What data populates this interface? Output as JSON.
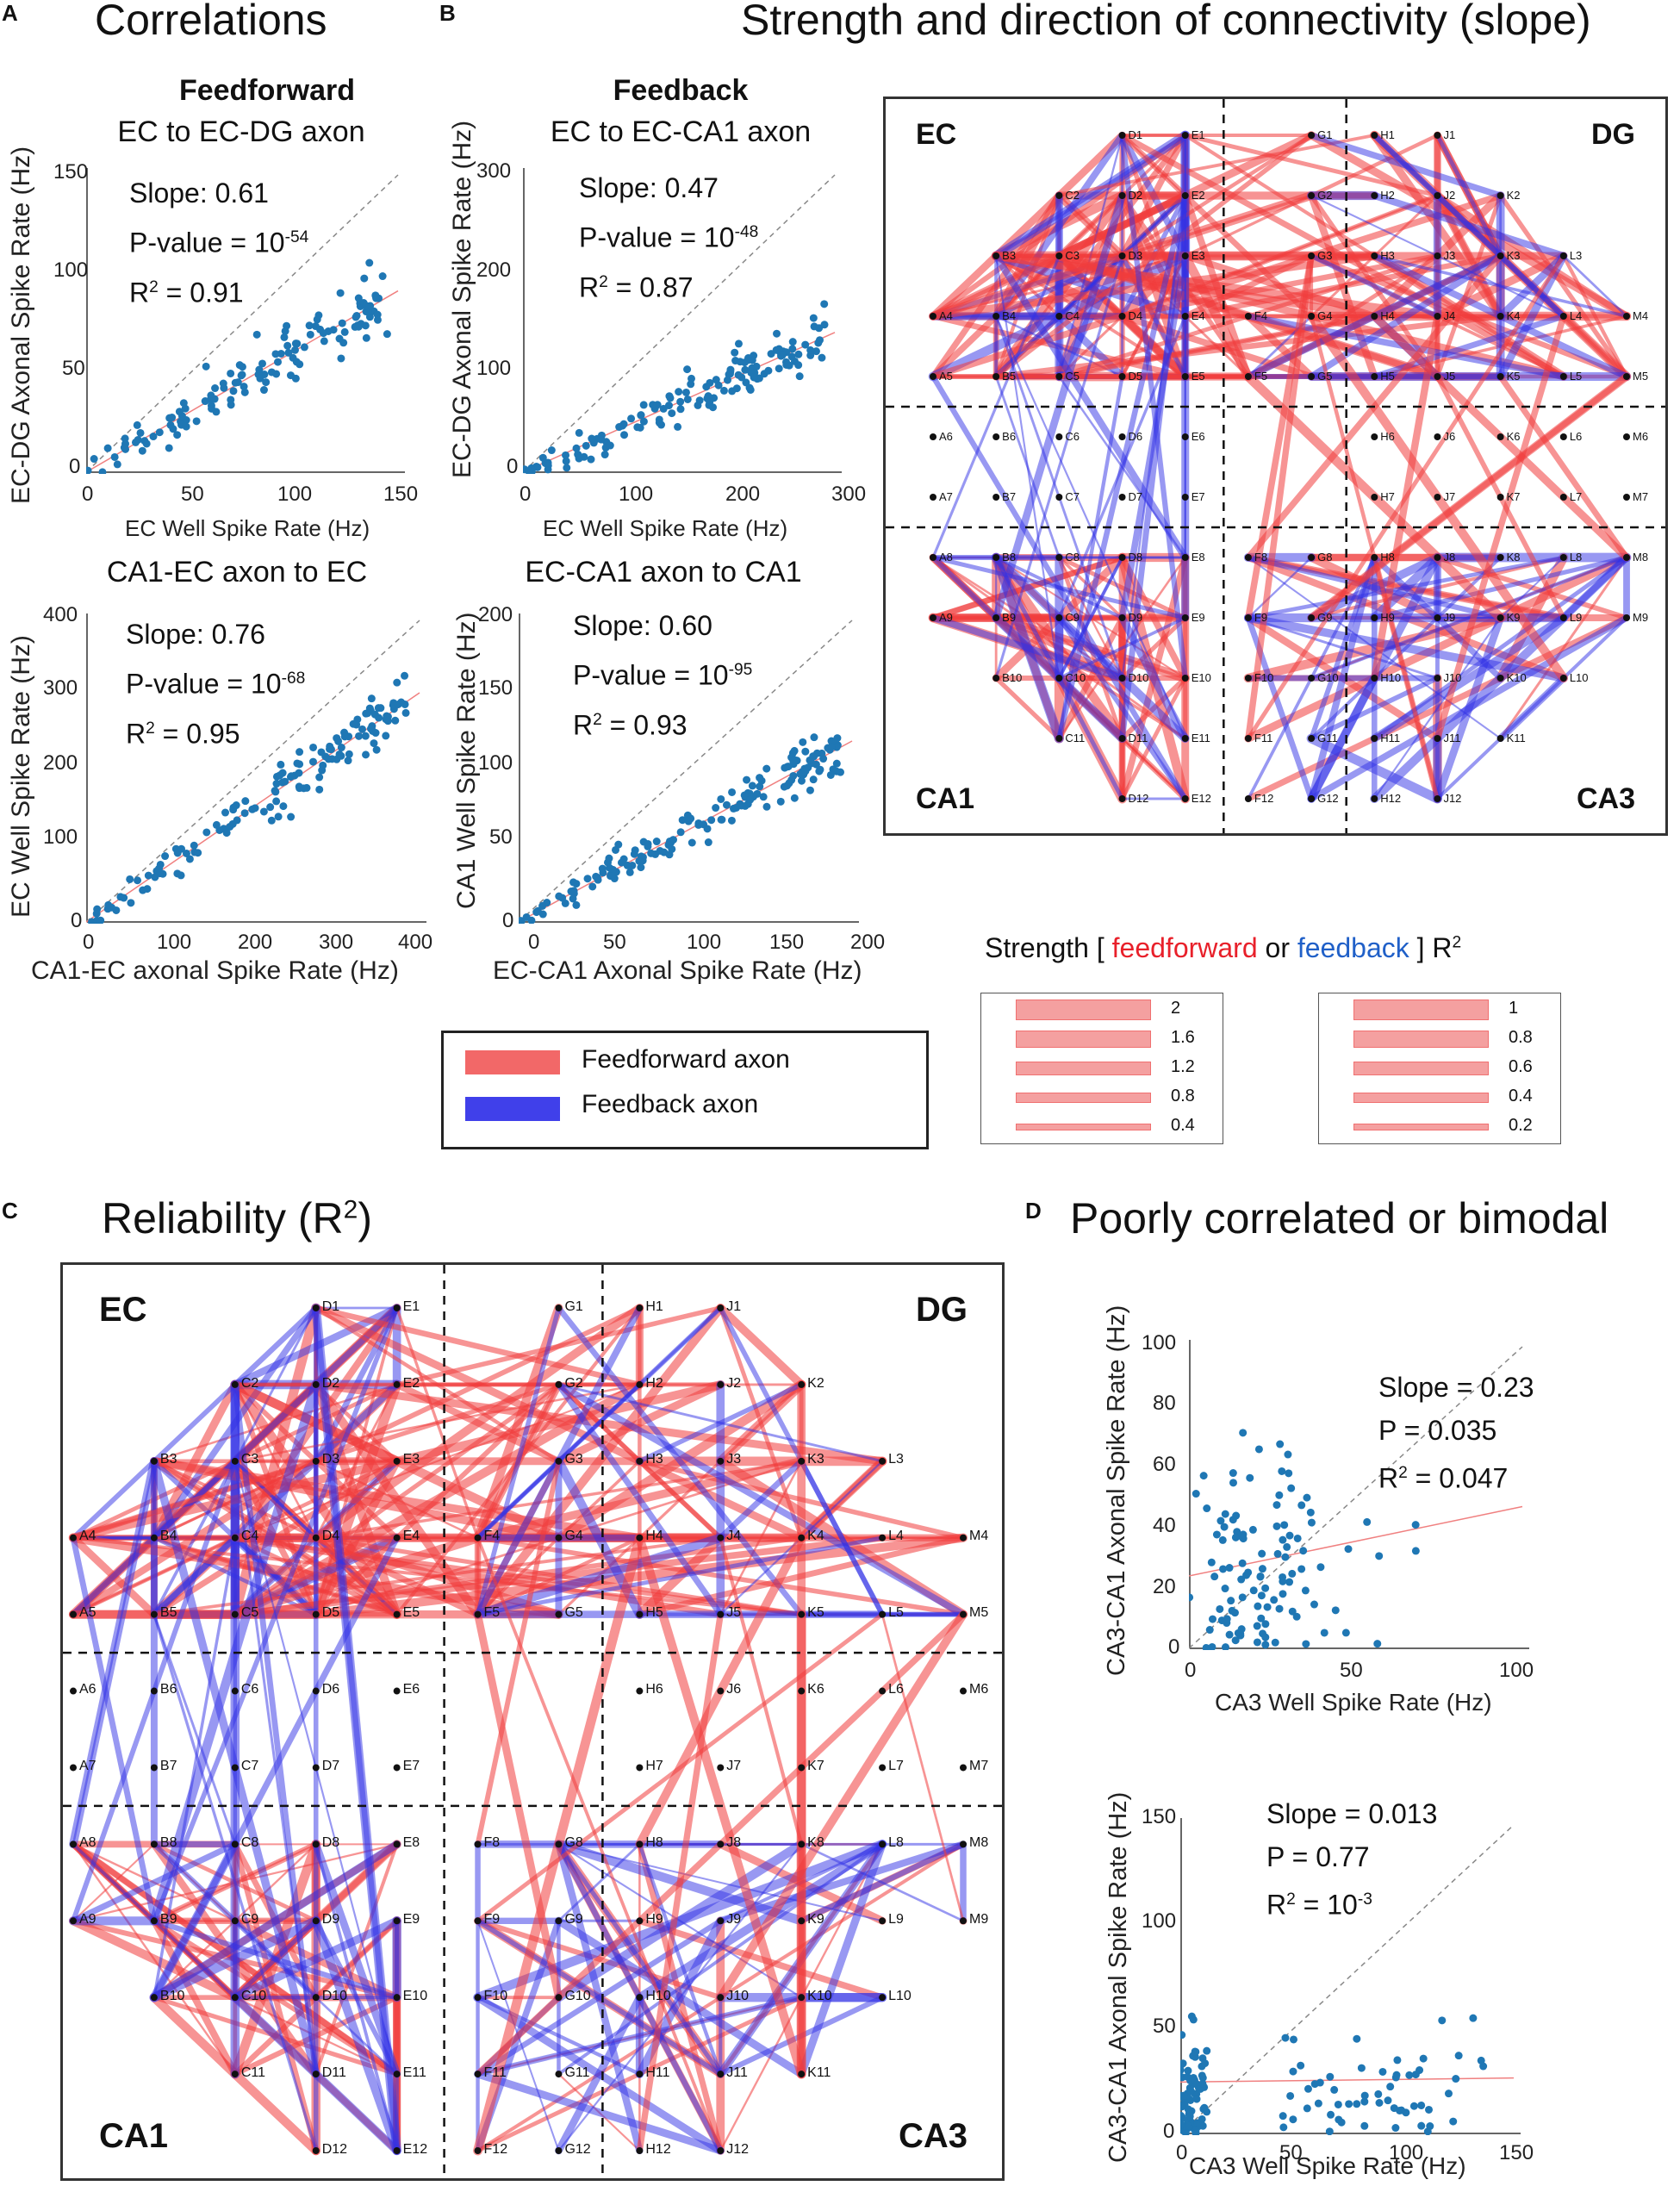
{
  "colors": {
    "feedforward": "#f05555",
    "feedback": "#3a3ae8",
    "point": "#1f77b4",
    "fit": "#f08080"
  },
  "panel_letters": {
    "a": "A",
    "b": "B",
    "c": "C",
    "d": "D"
  },
  "titles": {
    "correlations": "Correlations",
    "strength_direction": "Strength and direction of connectivity (slope)",
    "reliability": "Reliability (R",
    "reliability_sup": "2",
    "reliability_end": ")",
    "poorly": "Poorly correlated or bimodal"
  },
  "subtitles": {
    "feedforward": "Feedforward",
    "feedback": "Feedback"
  },
  "charts": {
    "ec_to_ecdg": {
      "title": "EC to EC-DG axon",
      "slope": "Slope: 0.61",
      "p_prefix": "P-value = 10",
      "p_exp": "-54",
      "r2": "= 0.91",
      "xlabel": "EC Well Spike Rate (Hz)",
      "ylabel": "EC-DG Axonal Spike Rate (Hz)",
      "xticks": [
        "0",
        "50",
        "100",
        "150"
      ],
      "yticks": [
        "0",
        "50",
        "100",
        "150"
      ]
    },
    "ec_to_ecca1": {
      "title": "EC to EC-CA1 axon",
      "slope": "Slope: 0.47",
      "p_prefix": "P-value = 10",
      "p_exp": "-48",
      "r2": "= 0.87",
      "xlabel": "EC Well Spike Rate (Hz)",
      "ylabel": "EC-DG Axonal Spike Rate (Hz)",
      "xticks": [
        "0",
        "100",
        "200",
        "300"
      ],
      "yticks": [
        "0",
        "100",
        "200",
        "300"
      ]
    },
    "ca1ec_to_ec": {
      "title": "CA1-EC axon to EC",
      "slope": "Slope: 0.76",
      "p_prefix": "P-value = 10",
      "p_exp": "-68",
      "r2": "= 0.95",
      "xlabel": "CA1-EC axonal Spike Rate (Hz)",
      "ylabel": "EC Well Spike Rate (Hz)",
      "xticks": [
        "0",
        "100",
        "200",
        "300",
        "400"
      ],
      "yticks": [
        "0",
        "100",
        "200",
        "300",
        "400"
      ]
    },
    "ecca1_to_ca1": {
      "title": "EC-CA1 axon to CA1",
      "slope": "Slope: 0.60",
      "p_prefix": "P-value = 10",
      "p_exp": "-95",
      "r2": "= 0.93",
      "xlabel": "EC-CA1 Axonal Spike Rate (Hz)",
      "ylabel": "CA1 Well Spike Rate (Hz)",
      "xticks": [
        "0",
        "50",
        "100",
        "150",
        "200"
      ],
      "yticks": [
        "0",
        "50",
        "100",
        "150",
        "200"
      ]
    },
    "ca3_a": {
      "slope": "Slope = 0.23",
      "p": "P = 0.035",
      "r2": "= 0.047",
      "xlabel": "CA3 Well Spike Rate (Hz)",
      "ylabel": "CA3-CA1 Axonal Spike Rate (Hz)",
      "xticks": [
        "0",
        "50",
        "100"
      ],
      "yticks": [
        "0",
        "20",
        "40",
        "60",
        "80",
        "100"
      ]
    },
    "ca3_b": {
      "slope": "Slope = 0.013",
      "p": "P  = 0.77",
      "r2_prefix": "= 10",
      "r2_exp": "-3",
      "xlabel": "CA3 Well Spike Rate (Hz)",
      "ylabel": "CA3-CA1 Axonal Spike Rate (Hz)",
      "xticks": [
        "0",
        "50",
        "100",
        "150"
      ],
      "yticks": [
        "0",
        "50",
        "100",
        "150"
      ]
    }
  },
  "r2_label": "R",
  "r2_sup": "2",
  "regions": {
    "ec": "EC",
    "dg": "DG",
    "ca1": "CA1",
    "ca3": "CA3"
  },
  "nodes": {
    "row1": [
      "D1",
      "E1",
      "G1",
      "H1",
      "J1"
    ],
    "row2": [
      "C2",
      "D2",
      "E2",
      "G2",
      "H2",
      "J2",
      "K2"
    ],
    "row3": [
      "B3",
      "C3",
      "D3",
      "E3",
      "G3",
      "H3",
      "J3",
      "K3",
      "L3"
    ],
    "row4": [
      "A4",
      "B4",
      "C4",
      "D4",
      "E4",
      "F4",
      "G4",
      "H4",
      "J4",
      "K4",
      "L4",
      "M4"
    ],
    "row5": [
      "A5",
      "B5",
      "C5",
      "D5",
      "E5",
      "F5",
      "G5",
      "H5",
      "J5",
      "K5",
      "L5",
      "M5"
    ],
    "row6": [
      "A6",
      "B6",
      "C6",
      "D6",
      "E6",
      "H6",
      "J6",
      "K6",
      "L6",
      "M6"
    ],
    "row7": [
      "A7",
      "B7",
      "C7",
      "D7",
      "E7",
      "H7",
      "J7",
      "K7",
      "L7",
      "M7"
    ],
    "row8": [
      "A8",
      "B8",
      "C8",
      "D8",
      "E8",
      "F8",
      "G8",
      "H8",
      "J8",
      "K8",
      "L8",
      "M8"
    ],
    "row9": [
      "A9",
      "B9",
      "C9",
      "D9",
      "E9",
      "F9",
      "G9",
      "H9",
      "J9",
      "K9",
      "L9",
      "M9"
    ],
    "row10": [
      "B10",
      "C10",
      "D10",
      "E10",
      "F10",
      "G10",
      "H10",
      "J10",
      "K10",
      "L10"
    ],
    "row11": [
      "C11",
      "D11",
      "E11",
      "F11",
      "G11",
      "H11",
      "J11",
      "K11"
    ],
    "row12": [
      "D12",
      "E12",
      "F12",
      "G12",
      "H12",
      "J12"
    ]
  },
  "legend": {
    "feedforward": "Feedforward axon",
    "feedback": "Feedback axon"
  },
  "strength": {
    "prefix": "Strength [",
    "ff": "feedforward",
    "or": "or",
    "fb": "feedback",
    "suffix": "] R",
    "sup": "2"
  },
  "scale_slope": [
    "2",
    "1.6",
    "1.2",
    "0.8",
    "0.4"
  ],
  "scale_r2": [
    "1",
    "0.8",
    "0.6",
    "0.4",
    "0.2"
  ]
}
